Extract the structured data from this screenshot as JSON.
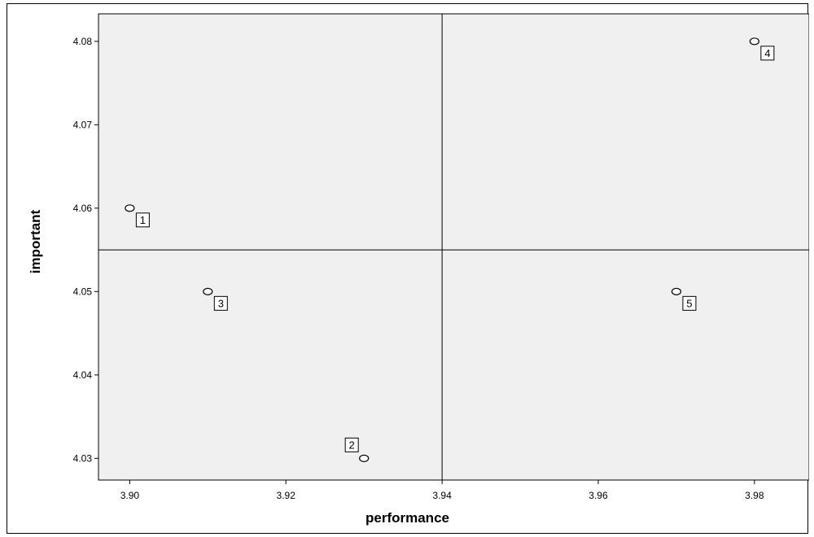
{
  "chart_data": {
    "type": "scatter",
    "title": "",
    "xlabel": "performance",
    "ylabel": "important",
    "xlim": [
      3.896,
      3.987
    ],
    "ylim": [
      4.0274,
      4.0833
    ],
    "x_ticks": [
      3.9,
      3.92,
      3.94,
      3.96,
      3.98
    ],
    "x_tick_labels": [
      "3.90",
      "3.92",
      "3.94",
      "3.96",
      "3.98"
    ],
    "y_ticks": [
      4.03,
      4.04,
      4.05,
      4.06,
      4.07,
      4.08
    ],
    "y_tick_labels": [
      "4.03",
      "4.04",
      "4.05",
      "4.06",
      "4.07",
      "4.08"
    ],
    "reference_lines": {
      "x": 3.94,
      "y": 4.055
    },
    "grid": false,
    "plot_background": "#f0f0f0",
    "points": [
      {
        "label": "1",
        "x": 3.9,
        "y": 4.06
      },
      {
        "label": "2",
        "x": 3.93,
        "y": 4.03
      },
      {
        "label": "3",
        "x": 3.91,
        "y": 4.05
      },
      {
        "label": "4",
        "x": 3.98,
        "y": 4.08
      },
      {
        "label": "5",
        "x": 3.97,
        "y": 4.05
      }
    ]
  }
}
